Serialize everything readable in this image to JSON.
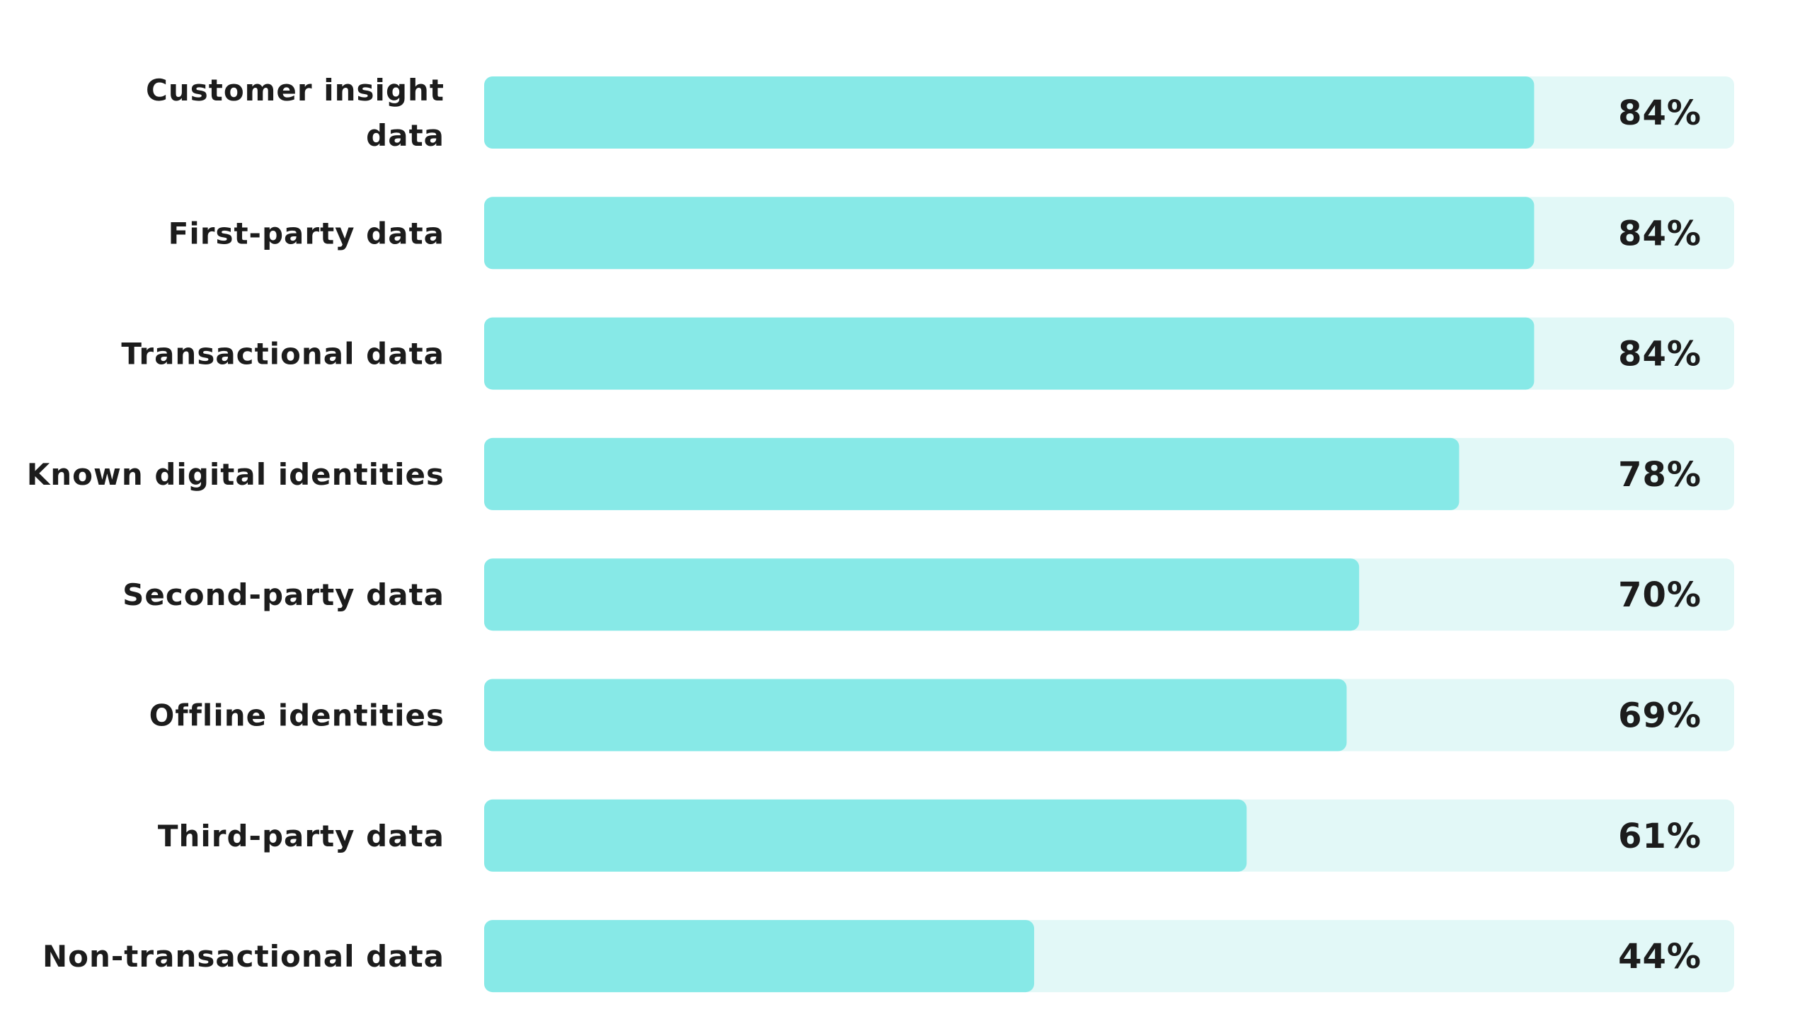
{
  "chart_data": {
    "type": "bar",
    "orientation": "horizontal",
    "categories": [
      "Customer insight data",
      "First-party data",
      "Transactional data",
      "Known digital identities",
      "Second-party data",
      "Offline identities",
      "Third-party data",
      "Non-transactional data"
    ],
    "category_lines": [
      [
        "Customer insight",
        "data"
      ],
      [
        "First-party data"
      ],
      [
        "Transactional data"
      ],
      [
        "Known digital identities"
      ],
      [
        "Second-party data"
      ],
      [
        "Offline identities"
      ],
      [
        "Third-party data"
      ],
      [
        "Non-transactional data"
      ]
    ],
    "values": [
      84,
      84,
      84,
      78,
      70,
      69,
      61,
      44
    ],
    "value_labels": [
      "84%",
      "84%",
      "84%",
      "78%",
      "70%",
      "69%",
      "61%",
      "44%"
    ],
    "xlim": [
      0,
      100
    ],
    "grid": false,
    "legend": "none",
    "colors": {
      "bar": "#87e9e7",
      "track": "#e2f8f7",
      "text": "#1c1c1c"
    }
  }
}
